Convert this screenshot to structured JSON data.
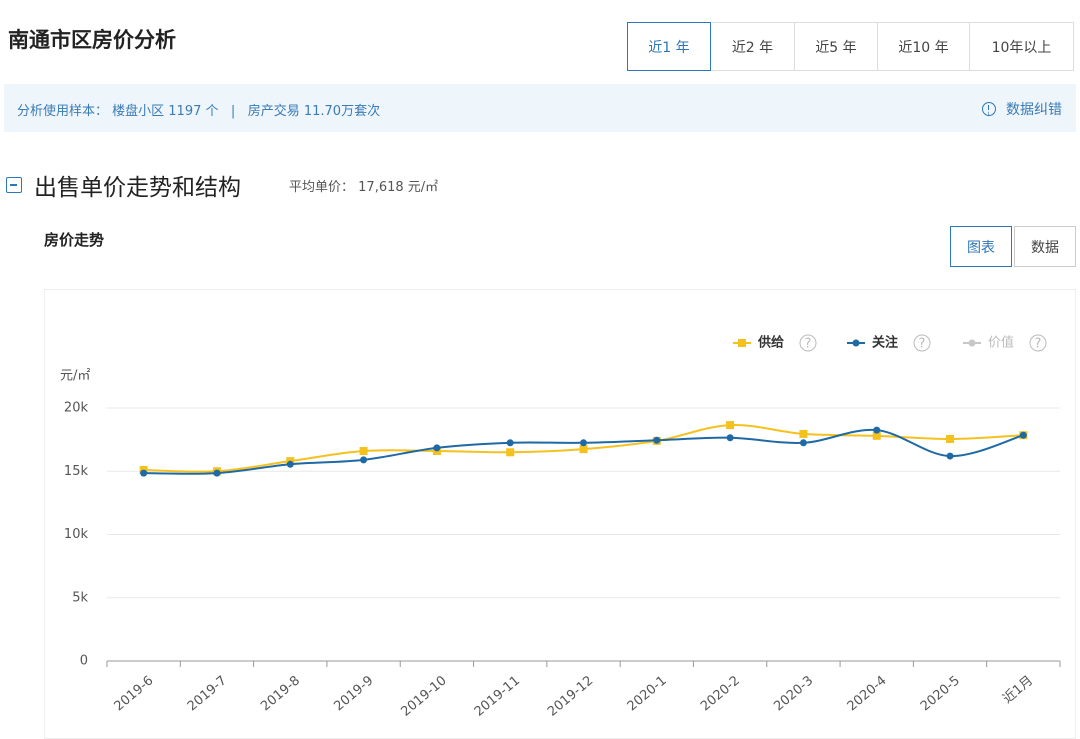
{
  "header": {
    "title": "南通市区房价分析",
    "tabs": [
      "近1 年",
      "近2 年",
      "近5 年",
      "近10 年",
      "10年以上"
    ]
  },
  "info": {
    "label": "分析使用样本：",
    "communities": "楼盘小区 1197 个",
    "separator": "|",
    "transactions": "房产交易 11.70万套次",
    "correction": "数据纠错"
  },
  "section": {
    "title": "出售单价走势和结构",
    "avg_label": "平均单价：",
    "avg_value": "17,618 元/㎡"
  },
  "chart_title": "房价走势",
  "view_buttons": [
    "图表",
    "数据"
  ],
  "chart_data": {
    "type": "line",
    "y_label": "元/㎡",
    "help_icon": "?",
    "categories": [
      "2019-6",
      "2019-7",
      "2019-8",
      "2019-9",
      "2019-10",
      "2019-11",
      "2019-12",
      "2020-1",
      "2020-2",
      "2020-3",
      "2020-4",
      "2020-5",
      "近1月"
    ],
    "series": [
      {
        "name": "供给",
        "color": "#f5c11d",
        "marker": "square",
        "values": [
          15100,
          15000,
          15800,
          16600,
          16600,
          16500,
          16750,
          17400,
          18650,
          17950,
          17800,
          17550,
          17850
        ]
      },
      {
        "name": "关注",
        "color": "#1f6aa5",
        "marker": "circle",
        "values": [
          14850,
          14850,
          15550,
          15900,
          16850,
          17250,
          17250,
          17450,
          17650,
          17250,
          18250,
          16200,
          17850
        ]
      },
      {
        "name": "价值",
        "color": "#c8c8c8",
        "marker": "circle",
        "hidden": true,
        "values": [
          null,
          null,
          null,
          null,
          null,
          null,
          null,
          null,
          null,
          null,
          null,
          null,
          null
        ]
      }
    ],
    "ylim": [
      0,
      20000
    ],
    "yticks": [
      0,
      {
        "value": 5000,
        "label": "5k"
      },
      {
        "value": 10000,
        "label": "10k"
      },
      {
        "value": 15000,
        "label": "15k"
      },
      {
        "value": 20000,
        "label": "20k"
      }
    ],
    "grid": true
  }
}
